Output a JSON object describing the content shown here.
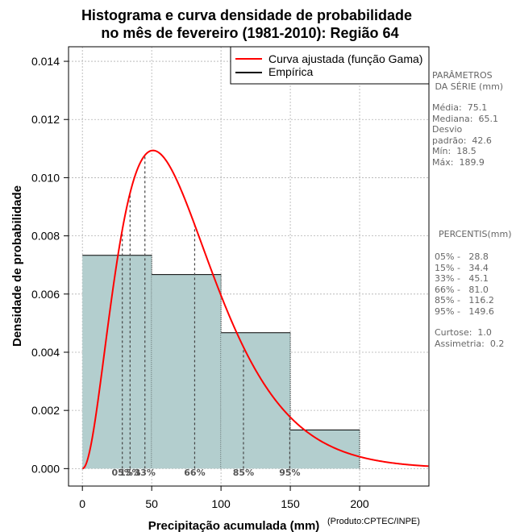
{
  "chart_data": {
    "type": "histogram",
    "title_lines": [
      "Histograma e curva densidade de probabilidade",
      "no mês de fevereiro (1981-2010): Região 64"
    ],
    "xlabel": "Precipitação acumulada (mm)",
    "ylabel": "Densidade de probabilidade",
    "credit": "(Produto:CPTEC/INPE)",
    "xlim": [
      -10,
      250
    ],
    "ylim": [
      -0.0006,
      0.0145
    ],
    "x_ticks": [
      0,
      50,
      100,
      150,
      200
    ],
    "x_tick_labels": [
      "0",
      "50",
      "100",
      "150",
      "200"
    ],
    "y_ticks": [
      0.0,
      0.002,
      0.004,
      0.006,
      0.008,
      0.01,
      0.012,
      0.014
    ],
    "y_tick_labels": [
      "0.000",
      "0.002",
      "0.004",
      "0.006",
      "0.008",
      "0.010",
      "0.012",
      "0.014"
    ],
    "grid": true,
    "bins": [
      {
        "start": 0,
        "end": 50,
        "density": 0.00733
      },
      {
        "start": 50,
        "end": 100,
        "density": 0.00667
      },
      {
        "start": 100,
        "end": 150,
        "density": 0.00467
      },
      {
        "start": 150,
        "end": 200,
        "density": 0.00133
      }
    ],
    "bar_color": "#b3cece",
    "gamma_fit": {
      "shape": 3.11,
      "scale": 24.15,
      "color": "#ff0000"
    },
    "legend": {
      "position": "top-right",
      "entries": [
        {
          "label": "Curva ajustada (função Gama)",
          "color": "#ff0000"
        },
        {
          "label": "Empírica",
          "color": "#000000"
        }
      ]
    },
    "percentile_markers": [
      {
        "label": "05%",
        "x": 28.8
      },
      {
        "label": "15%",
        "x": 34.4
      },
      {
        "label": "33%",
        "x": 45.1
      },
      {
        "label": "66%",
        "x": 81.0
      },
      {
        "label": "85%",
        "x": 116.2
      },
      {
        "label": "95%",
        "x": 149.6
      }
    ]
  },
  "side_panel": {
    "params_heading_1": "PARÂMETROS",
    "params_heading_2": " DA SÉRIE (mm)",
    "media": "Média:  75.1",
    "mediana": "Mediana:  65.1",
    "desvio_1": "Desvio",
    "desvio_2": "padrão:  42.6",
    "min": "Mín:  18.5",
    "max": "Máx:  189.9",
    "percentis_heading": "PERCENTIS(mm)",
    "p05": "05% -   28.8",
    "p15": "15% -   34.4",
    "p33": "33% -   45.1",
    "p66": "66% -   81.0",
    "p85": "85% -   116.2",
    "p95": "95% -   149.6",
    "curtose": "Curtose:  1.0",
    "assimetria": "Assimetria:  0.2"
  }
}
